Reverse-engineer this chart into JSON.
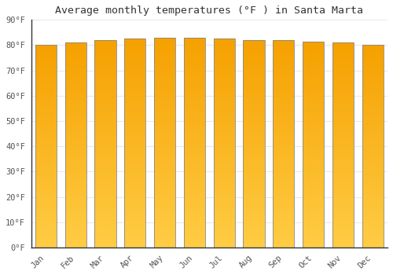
{
  "title": "Average monthly temperatures (°F ) in Santa Marta",
  "months": [
    "Jan",
    "Feb",
    "Mar",
    "Apr",
    "May",
    "Jun",
    "Jul",
    "Aug",
    "Sep",
    "Oct",
    "Nov",
    "Dec"
  ],
  "values": [
    80,
    81,
    82,
    82.5,
    83,
    83,
    82.5,
    82,
    82,
    81.5,
    81,
    80
  ],
  "ylim": [
    0,
    90
  ],
  "yticks": [
    0,
    10,
    20,
    30,
    40,
    50,
    60,
    70,
    80,
    90
  ],
  "bar_color_bottom": "#FFCC44",
  "bar_color_top": "#F5A000",
  "bar_edge_color": "#888888",
  "background_color": "#FFFFFF",
  "plot_bg_color": "#FFFFFF",
  "grid_color": "#E8E8F0",
  "title_fontsize": 9.5,
  "tick_fontsize": 7.5,
  "bar_width": 0.72
}
